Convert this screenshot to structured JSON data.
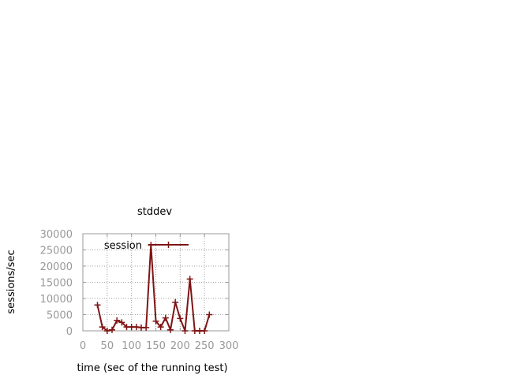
{
  "chart_data": {
    "type": "line",
    "title": "stddev",
    "xlabel": "time (sec of the running test)",
    "ylabel": "sessions/sec",
    "xlim": [
      0,
      300
    ],
    "ylim": [
      0,
      30000
    ],
    "xticks": [
      0,
      50,
      100,
      150,
      200,
      250,
      300
    ],
    "yticks": [
      0,
      5000,
      10000,
      15000,
      20000,
      25000,
      30000
    ],
    "grid": true,
    "legend_position": "top-right",
    "series": [
      {
        "name": "session",
        "color": "#7f1414",
        "x": [
          30,
          40,
          50,
          60,
          70,
          80,
          90,
          100,
          110,
          120,
          130,
          140,
          150,
          160,
          170,
          180,
          190,
          200,
          210,
          220,
          230,
          240,
          250,
          260
        ],
        "y": [
          8000,
          1200,
          0,
          300,
          3200,
          2600,
          1200,
          1200,
          1200,
          1000,
          1000,
          26500,
          3000,
          1200,
          4000,
          300,
          8800,
          3800,
          0,
          16000,
          0,
          0,
          0,
          5000
        ]
      }
    ]
  }
}
